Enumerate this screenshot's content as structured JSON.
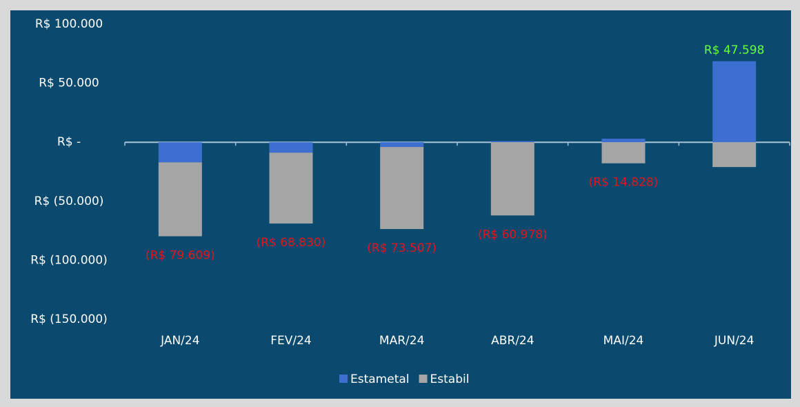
{
  "chart_data": {
    "type": "stacked_bar",
    "categories": [
      "JAN/24",
      "FEV/24",
      "MAR/24",
      "ABR/24",
      "MAI/24",
      "JUN/24"
    ],
    "series": [
      {
        "name": "Estametal",
        "color": "#3d6fd1",
        "values": [
          -17000,
          -8800,
          -4000,
          1000,
          3000,
          68598
        ]
      },
      {
        "name": "Estabil",
        "color": "#a5a5a5",
        "values": [
          -62609,
          -60030,
          -69507,
          -61978,
          -17828,
          -21000
        ]
      }
    ],
    "totals": {
      "values": [
        -79609,
        -68830,
        -73507,
        -60978,
        -14828,
        47598
      ],
      "value_labels": [
        "(R$ 79.609)",
        "(R$ 68.830)",
        "(R$ 73.507)",
        "(R$ 60.978)",
        "(R$ 14.828)",
        "R$ 47.598"
      ]
    },
    "label_colors": {
      "negative": "#e3141b",
      "positive": "#63ff3c"
    },
    "ylim": [
      -150000,
      100000
    ],
    "yticks": [
      {
        "value": 100000,
        "label": "R$ 100.000"
      },
      {
        "value": 50000,
        "label": "R$ 50.000"
      },
      {
        "value": 0,
        "label": "R$ -"
      },
      {
        "value": -50000,
        "label": "R$ (50.000)"
      },
      {
        "value": -100000,
        "label": "R$ (100.000)"
      },
      {
        "value": -150000,
        "label": "R$ (150.000)"
      }
    ],
    "legend": "bottom"
  }
}
